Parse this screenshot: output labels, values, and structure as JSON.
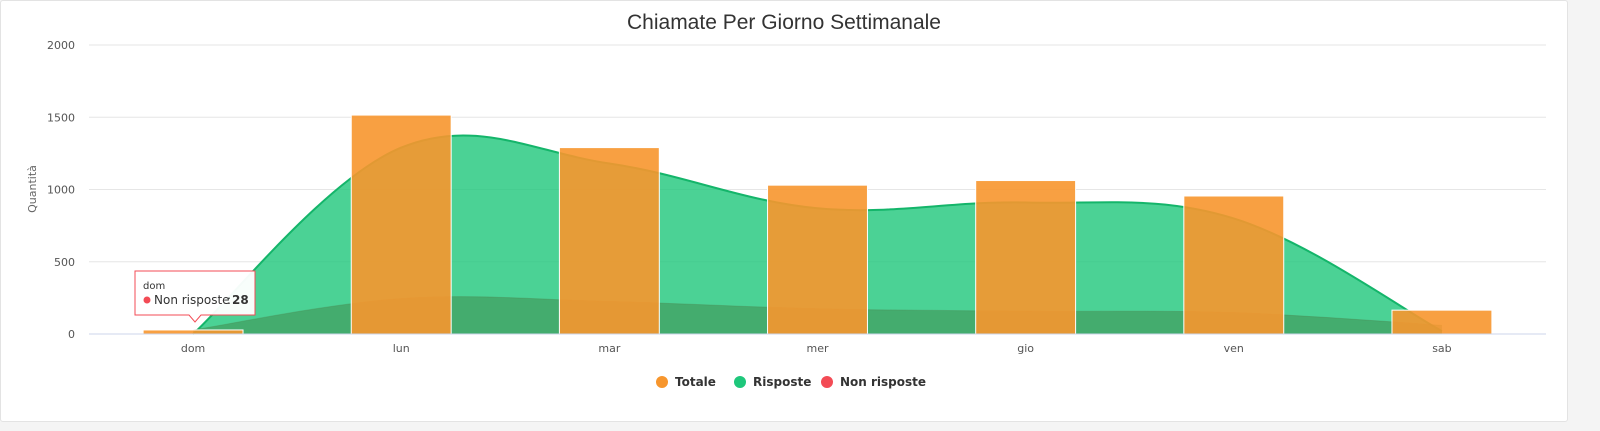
{
  "chart_data": {
    "type": "bar",
    "title": "Chiamate Per Giorno Settimanale",
    "xlabel": "",
    "ylabel": "Quantità",
    "categories": [
      "dom",
      "lun",
      "mar",
      "mer",
      "gio",
      "ven",
      "sab"
    ],
    "ylim": [
      0,
      2000
    ],
    "yticks": [
      0,
      500,
      1000,
      1500,
      2000
    ],
    "grid": true,
    "legend_position": "bottom",
    "series": [
      {
        "name": "Totale",
        "type": "bar",
        "color": "#f7962d",
        "values": [
          28,
          1515,
          1290,
          1030,
          1062,
          955,
          165
        ]
      },
      {
        "name": "Risposte",
        "type": "area",
        "color": "#1ec77b",
        "values": [
          0,
          1290,
          1180,
          870,
          910,
          800,
          20
        ]
      },
      {
        "name": "Non risposte",
        "type": "area",
        "color": "#f34b55",
        "values": [
          28,
          245,
          225,
          175,
          158,
          148,
          60
        ]
      }
    ],
    "tooltip": {
      "category": "dom",
      "series": "Non risposte",
      "value": "28"
    }
  }
}
